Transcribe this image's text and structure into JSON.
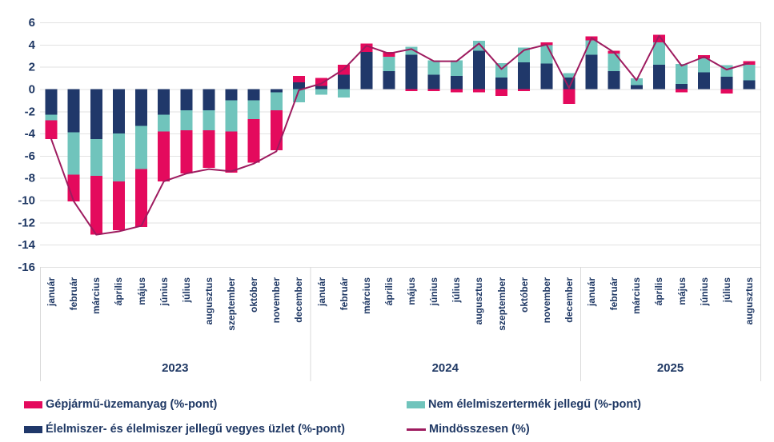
{
  "chart_data": {
    "type": "bar",
    "subtype": "stacked-bars-with-total-line",
    "title": "",
    "y_axis": {
      "min": -16,
      "max": 6,
      "step": 2,
      "tick_labels": [
        "6",
        "4",
        "2",
        "0",
        "-2",
        "-4",
        "-6",
        "-8",
        "-10",
        "-12",
        "-14",
        "-16"
      ],
      "grid": true
    },
    "x_axis": {
      "years": [
        {
          "label": "2023",
          "months": [
            "január",
            "február",
            "március",
            "április",
            "május",
            "június",
            "július",
            "augusztus",
            "szeptember",
            "október",
            "november",
            "december"
          ]
        },
        {
          "label": "2024",
          "months": [
            "január",
            "február",
            "március",
            "április",
            "május",
            "június",
            "július",
            "augusztus",
            "szeptember",
            "október",
            "november",
            "december"
          ]
        },
        {
          "label": "2025",
          "months": [
            "január",
            "február",
            "március",
            "április",
            "május",
            "június",
            "július",
            "augusztus"
          ]
        }
      ]
    },
    "series": [
      {
        "name": "Gépjármű-üzemanyag (%-pont)",
        "type": "bar",
        "color": "#E40A5D",
        "values": [
          -1.7,
          -2.4,
          -5.3,
          -4.4,
          -5.2,
          -4.5,
          -3.9,
          -3.4,
          -3.7,
          -3.9,
          -3.6,
          0.6,
          0.7,
          0.9,
          0.75,
          0.45,
          -0.2,
          -0.2,
          -0.3,
          -0.3,
          -0.6,
          -0.2,
          0.25,
          -1.35,
          0.35,
          0.25,
          0,
          0.7,
          -0.3,
          0.3,
          -0.4,
          0.3
        ]
      },
      {
        "name": "Nem élelmiszertermék jellegű (%-pont)",
        "type": "bar",
        "color": "#70C4BC",
        "values": [
          -0.5,
          -3.8,
          -3.3,
          -4.3,
          -3.9,
          -1.5,
          -1.8,
          -1.8,
          -2.8,
          -1.7,
          -1.6,
          -1.2,
          -0.5,
          -0.75,
          0,
          1.3,
          0.7,
          1.3,
          1.4,
          0.9,
          1.3,
          1.35,
          1.65,
          0.4,
          1.3,
          1.6,
          0.6,
          2.0,
          1.8,
          1.25,
          1.05,
          1.4
        ]
      },
      {
        "name": "Élelmiszer- és élelmiszer jellegű vegyes üzlet (%-pont)",
        "type": "bar",
        "color": "#20386A",
        "values": [
          -2.3,
          -3.9,
          -4.5,
          -4.0,
          -3.3,
          -2.3,
          -1.9,
          -1.9,
          -1.0,
          -1.0,
          -0.3,
          0.6,
          0.3,
          1.3,
          3.35,
          1.6,
          3.1,
          1.3,
          1.2,
          3.45,
          1.05,
          2.4,
          2.3,
          1.05,
          3.1,
          1.6,
          0.35,
          2.2,
          0.45,
          1.5,
          1.1,
          0.8
        ]
      },
      {
        "name": "Mindösszesen (%)",
        "type": "line",
        "color": "#9E1B5F",
        "values": [
          -4.5,
          -10.1,
          -13.1,
          -12.8,
          -12.3,
          -8.3,
          -7.6,
          -7.2,
          -7.4,
          -6.7,
          -5.6,
          -0.1,
          0.5,
          1.8,
          3.9,
          3.2,
          3.6,
          2.5,
          2.5,
          4.1,
          1.8,
          3.5,
          4.0,
          0.1,
          4.6,
          3.3,
          0.8,
          4.8,
          2.1,
          2.9,
          1.75,
          2.35
        ]
      }
    ],
    "stack_order_from_axis": [
      "Élelmiszer- és élelmiszer jellegű vegyes üzlet (%-pont)",
      "Nem élelmiszertermék jellegű (%-pont)",
      "Gépjármű-üzemanyag (%-pont)"
    ],
    "legend_position": "bottom",
    "colors": {
      "axis_text": "#1F3864",
      "gridline": "#E2E2E2",
      "border": "#D9D9D9"
    }
  }
}
